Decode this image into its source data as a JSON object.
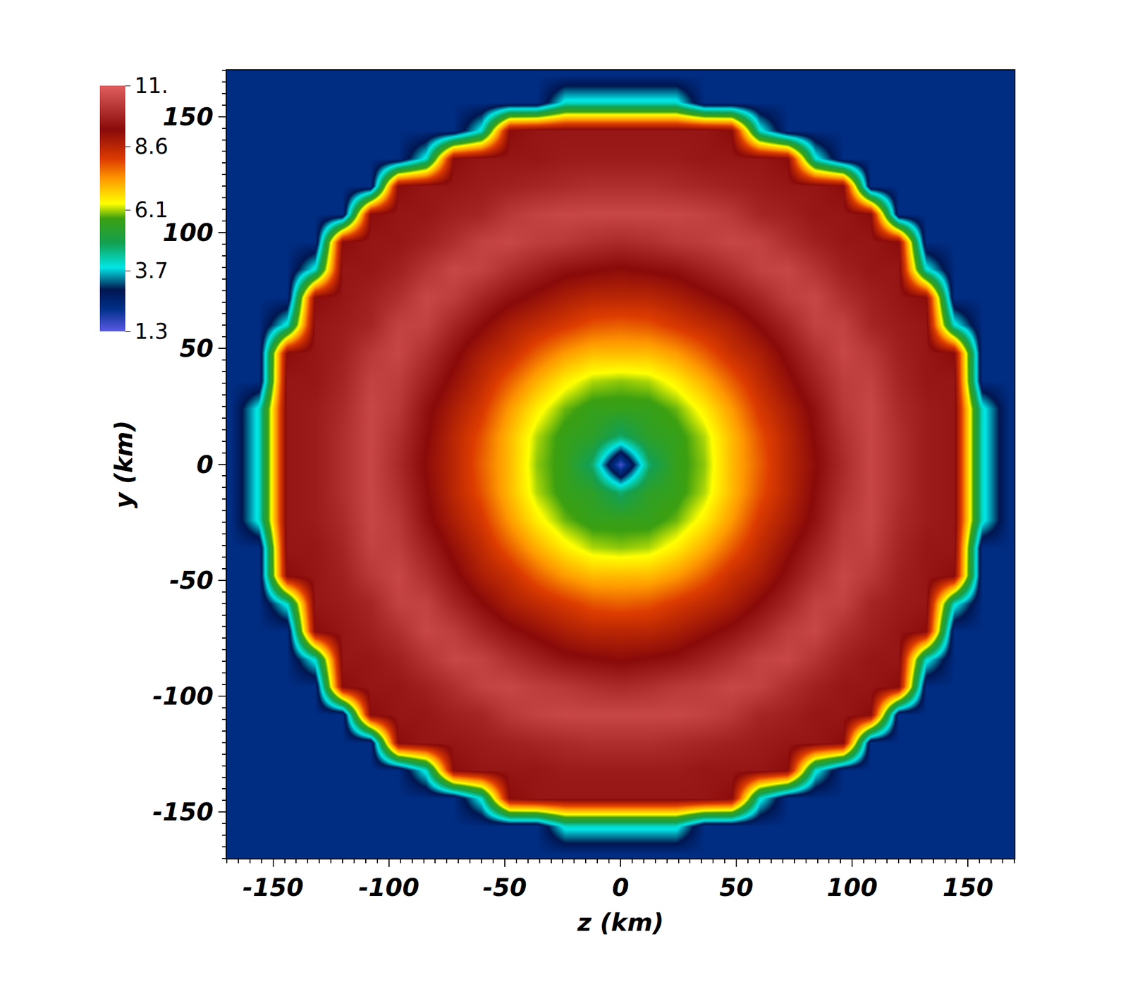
{
  "chart_data": {
    "type": "heatmap",
    "x_label": "z (km)",
    "y_label": "y (km)",
    "x": [
      -168,
      -156,
      -144,
      -132,
      -120,
      -108,
      -96,
      -84,
      -72,
      -60,
      -48,
      -36,
      -24,
      -12,
      0,
      12,
      24,
      36,
      48,
      60,
      72,
      84,
      96,
      108,
      120,
      132,
      144,
      156,
      168
    ],
    "y": [
      -168,
      -156,
      -144,
      -132,
      -120,
      -108,
      -96,
      -84,
      -72,
      -60,
      -48,
      -36,
      -24,
      -12,
      0,
      12,
      24,
      36,
      48,
      60,
      72,
      84,
      96,
      108,
      120,
      132,
      144,
      156,
      168
    ],
    "z": [
      [
        2.3,
        2.3,
        2.3,
        2.3,
        2.3,
        2.3,
        2.3,
        2.3,
        2.3,
        2.3,
        2.3,
        2.3,
        2.3,
        2.3,
        2.3,
        2.3,
        2.3,
        2.3,
        2.3,
        2.3,
        2.3,
        2.3,
        2.3,
        2.3,
        2.3,
        2.3,
        2.3,
        2.3,
        2.3
      ],
      [
        2.3,
        2.3,
        2.3,
        2.3,
        2.3,
        2.3,
        2.3,
        2.3,
        2.3,
        2.3,
        2.3,
        2.3,
        4.0,
        4.0,
        4.0,
        4.0,
        4.0,
        2.3,
        2.3,
        2.3,
        2.3,
        2.3,
        2.3,
        2.3,
        2.3,
        2.3,
        2.3,
        2.3,
        2.3
      ],
      [
        2.3,
        2.3,
        2.3,
        2.3,
        2.3,
        2.3,
        2.3,
        2.3,
        2.3,
        4.0,
        9.3,
        9.5,
        9.5,
        9.5,
        9.5,
        9.5,
        9.5,
        9.5,
        9.3,
        4.0,
        2.3,
        2.3,
        2.3,
        2.3,
        2.3,
        2.3,
        2.3,
        2.3,
        2.3
      ],
      [
        2.3,
        2.3,
        2.3,
        2.3,
        2.3,
        2.3,
        2.3,
        4.0,
        9.3,
        9.5,
        9.5,
        9.5,
        9.6,
        9.6,
        9.6,
        9.6,
        9.6,
        9.5,
        9.5,
        9.5,
        9.3,
        4.0,
        2.3,
        2.3,
        2.3,
        2.3,
        2.3,
        2.3,
        2.3
      ],
      [
        2.3,
        2.3,
        2.3,
        2.3,
        2.3,
        2.3,
        9.3,
        9.5,
        9.5,
        9.6,
        9.7,
        9.8,
        9.9,
        10.0,
        10.0,
        10.0,
        9.9,
        9.8,
        9.7,
        9.6,
        9.5,
        9.5,
        9.3,
        2.3,
        2.3,
        2.3,
        2.3,
        2.3,
        2.3
      ],
      [
        2.3,
        2.3,
        2.3,
        2.3,
        2.3,
        9.3,
        9.5,
        9.5,
        9.7,
        9.8,
        10.2,
        10.4,
        10.5,
        10.5,
        10.5,
        10.5,
        10.5,
        10.4,
        10.2,
        9.8,
        9.7,
        9.5,
        9.5,
        9.3,
        2.3,
        2.3,
        2.3,
        2.3,
        2.3
      ],
      [
        2.3,
        2.3,
        2.3,
        2.3,
        9.3,
        9.5,
        9.5,
        9.7,
        10.0,
        10.4,
        10.5,
        10.3,
        10.2,
        10.0,
        9.9,
        10.0,
        10.2,
        10.3,
        10.5,
        10.4,
        10.0,
        9.7,
        9.5,
        9.5,
        9.3,
        2.3,
        2.3,
        2.3,
        2.3
      ],
      [
        2.3,
        2.3,
        2.3,
        4.0,
        9.5,
        9.5,
        9.7,
        10.1,
        10.5,
        10.4,
        10.0,
        9.7,
        9.4,
        9.3,
        9.2,
        9.3,
        9.4,
        9.7,
        10.0,
        10.4,
        10.5,
        10.1,
        9.7,
        9.5,
        9.5,
        4.0,
        2.3,
        2.3,
        2.3
      ],
      [
        2.3,
        2.3,
        2.3,
        9.3,
        9.5,
        9.7,
        10.0,
        10.5,
        10.3,
        9.8,
        9.4,
        9.1,
        8.8,
        8.6,
        8.6,
        8.6,
        8.8,
        9.1,
        9.4,
        9.8,
        10.3,
        10.5,
        10.0,
        9.7,
        9.5,
        9.3,
        2.3,
        2.3,
        2.3
      ],
      [
        2.3,
        2.3,
        4.0,
        9.5,
        9.6,
        9.8,
        10.4,
        10.4,
        9.8,
        9.3,
        8.8,
        8.5,
        8.2,
        7.9,
        7.8,
        7.9,
        8.2,
        8.5,
        8.8,
        9.3,
        9.8,
        10.4,
        10.4,
        9.8,
        9.6,
        9.5,
        4.0,
        2.3,
        2.3
      ],
      [
        2.3,
        2.3,
        9.3,
        9.5,
        9.7,
        10.2,
        10.5,
        10.0,
        9.4,
        8.8,
        8.4,
        7.8,
        7.3,
        7.0,
        7.0,
        7.0,
        7.3,
        7.8,
        8.4,
        8.8,
        9.4,
        10.0,
        10.5,
        10.2,
        9.7,
        9.5,
        9.3,
        2.3,
        2.3
      ],
      [
        2.3,
        2.3,
        9.5,
        9.5,
        9.8,
        10.4,
        10.3,
        9.7,
        9.1,
        8.5,
        7.8,
        7.1,
        6.5,
        6.1,
        6.0,
        6.1,
        6.5,
        7.1,
        7.8,
        8.5,
        9.1,
        9.7,
        10.3,
        10.4,
        9.8,
        9.5,
        9.5,
        2.3,
        2.3
      ],
      [
        2.3,
        4.0,
        9.5,
        9.6,
        9.9,
        10.5,
        10.2,
        9.4,
        8.8,
        8.2,
        7.3,
        6.5,
        5.9,
        5.6,
        5.6,
        5.6,
        5.9,
        6.5,
        7.3,
        8.2,
        8.8,
        9.4,
        10.2,
        10.5,
        9.9,
        9.6,
        9.5,
        4.0,
        2.3
      ],
      [
        2.3,
        4.0,
        9.5,
        9.6,
        10.0,
        10.5,
        10.0,
        9.3,
        8.6,
        7.9,
        7.0,
        6.1,
        5.6,
        5.4,
        4.6,
        5.4,
        5.6,
        6.1,
        7.0,
        7.9,
        8.6,
        9.3,
        10.0,
        10.5,
        10.0,
        9.6,
        9.5,
        4.0,
        2.3
      ],
      [
        2.3,
        4.0,
        9.5,
        9.6,
        10.0,
        10.5,
        9.9,
        9.2,
        8.6,
        7.8,
        7.0,
        6.0,
        5.6,
        4.6,
        1.5,
        4.6,
        5.6,
        6.0,
        7.0,
        7.8,
        8.6,
        9.2,
        9.9,
        10.5,
        10.0,
        9.6,
        9.5,
        4.0,
        2.3
      ],
      [
        2.3,
        4.0,
        9.5,
        9.6,
        10.0,
        10.5,
        10.0,
        9.3,
        8.6,
        7.9,
        7.0,
        6.1,
        5.6,
        5.4,
        4.6,
        5.4,
        5.6,
        6.1,
        7.0,
        7.9,
        8.6,
        9.3,
        10.0,
        10.5,
        10.0,
        9.6,
        9.5,
        4.0,
        2.3
      ],
      [
        2.3,
        4.0,
        9.5,
        9.6,
        9.9,
        10.5,
        10.2,
        9.4,
        8.8,
        8.2,
        7.3,
        6.5,
        5.9,
        5.6,
        5.6,
        5.6,
        5.9,
        6.5,
        7.3,
        8.2,
        8.8,
        9.4,
        10.2,
        10.5,
        9.9,
        9.6,
        9.5,
        4.0,
        2.3
      ],
      [
        2.3,
        2.3,
        9.5,
        9.5,
        9.8,
        10.4,
        10.3,
        9.7,
        9.1,
        8.5,
        7.8,
        7.1,
        6.5,
        6.1,
        6.0,
        6.1,
        6.5,
        7.1,
        7.8,
        8.5,
        9.1,
        9.7,
        10.3,
        10.4,
        9.8,
        9.5,
        9.5,
        2.3,
        2.3
      ],
      [
        2.3,
        2.3,
        9.3,
        9.5,
        9.7,
        10.2,
        10.5,
        10.0,
        9.4,
        8.8,
        8.4,
        7.8,
        7.3,
        7.0,
        7.0,
        7.0,
        7.3,
        7.8,
        8.4,
        8.8,
        9.4,
        10.0,
        10.5,
        10.2,
        9.7,
        9.5,
        9.3,
        2.3,
        2.3
      ],
      [
        2.3,
        2.3,
        4.0,
        9.5,
        9.6,
        9.8,
        10.4,
        10.4,
        9.8,
        9.3,
        8.8,
        8.5,
        8.2,
        7.9,
        7.8,
        7.9,
        8.2,
        8.5,
        8.8,
        9.3,
        9.8,
        10.4,
        10.4,
        9.8,
        9.6,
        9.5,
        4.0,
        2.3,
        2.3
      ],
      [
        2.3,
        2.3,
        2.3,
        9.3,
        9.5,
        9.7,
        10.0,
        10.5,
        10.3,
        9.8,
        9.4,
        9.1,
        8.8,
        8.6,
        8.6,
        8.6,
        8.8,
        9.1,
        9.4,
        9.8,
        10.3,
        10.5,
        10.0,
        9.7,
        9.5,
        9.3,
        2.3,
        2.3,
        2.3
      ],
      [
        2.3,
        2.3,
        2.3,
        4.0,
        9.5,
        9.5,
        9.7,
        10.1,
        10.5,
        10.4,
        10.0,
        9.7,
        9.4,
        9.3,
        9.2,
        9.3,
        9.4,
        9.7,
        10.0,
        10.4,
        10.5,
        10.1,
        9.7,
        9.5,
        9.5,
        4.0,
        2.3,
        2.3,
        2.3
      ],
      [
        2.3,
        2.3,
        2.3,
        2.3,
        9.3,
        9.5,
        9.5,
        9.7,
        10.0,
        10.4,
        10.5,
        10.3,
        10.2,
        10.0,
        9.9,
        10.0,
        10.2,
        10.3,
        10.5,
        10.4,
        10.0,
        9.7,
        9.5,
        9.5,
        9.3,
        2.3,
        2.3,
        2.3,
        2.3
      ],
      [
        2.3,
        2.3,
        2.3,
        2.3,
        2.3,
        9.3,
        9.5,
        9.5,
        9.7,
        9.8,
        10.2,
        10.4,
        10.5,
        10.5,
        10.5,
        10.5,
        10.5,
        10.4,
        10.2,
        9.8,
        9.7,
        9.5,
        9.5,
        9.3,
        2.3,
        2.3,
        2.3,
        2.3,
        2.3
      ],
      [
        2.3,
        2.3,
        2.3,
        2.3,
        2.3,
        2.3,
        9.3,
        9.5,
        9.5,
        9.6,
        9.7,
        9.8,
        9.9,
        10.0,
        10.0,
        10.0,
        9.9,
        9.8,
        9.7,
        9.6,
        9.5,
        9.5,
        9.3,
        2.3,
        2.3,
        2.3,
        2.3,
        2.3,
        2.3
      ],
      [
        2.3,
        2.3,
        2.3,
        2.3,
        2.3,
        2.3,
        2.3,
        4.0,
        9.3,
        9.5,
        9.5,
        9.5,
        9.6,
        9.6,
        9.6,
        9.6,
        9.6,
        9.5,
        9.5,
        9.5,
        9.3,
        4.0,
        2.3,
        2.3,
        2.3,
        2.3,
        2.3,
        2.3,
        2.3
      ],
      [
        2.3,
        2.3,
        2.3,
        2.3,
        2.3,
        2.3,
        2.3,
        2.3,
        2.3,
        4.0,
        9.3,
        9.5,
        9.5,
        9.5,
        9.5,
        9.5,
        9.5,
        9.5,
        9.3,
        4.0,
        2.3,
        2.3,
        2.3,
        2.3,
        2.3,
        2.3,
        2.3,
        2.3,
        2.3
      ],
      [
        2.3,
        2.3,
        2.3,
        2.3,
        2.3,
        2.3,
        2.3,
        2.3,
        2.3,
        2.3,
        2.3,
        2.3,
        4.0,
        4.0,
        4.0,
        4.0,
        4.0,
        2.3,
        2.3,
        2.3,
        2.3,
        2.3,
        2.3,
        2.3,
        2.3,
        2.3,
        2.3,
        2.3,
        2.3
      ],
      [
        2.3,
        2.3,
        2.3,
        2.3,
        2.3,
        2.3,
        2.3,
        2.3,
        2.3,
        2.3,
        2.3,
        2.3,
        2.3,
        2.3,
        2.3,
        2.3,
        2.3,
        2.3,
        2.3,
        2.3,
        2.3,
        2.3,
        2.3,
        2.3,
        2.3,
        2.3,
        2.3,
        2.3,
        2.3
      ]
    ],
    "xlim": [
      -170,
      170
    ],
    "ylim": [
      -170,
      170
    ],
    "xticks": [
      -150,
      -100,
      -50,
      0,
      50,
      100,
      150
    ],
    "yticks": [
      -150,
      -100,
      -50,
      0,
      50,
      100,
      150
    ],
    "zlim": [
      1.3,
      11
    ],
    "zticks": [
      1.3,
      3.7,
      6.1,
      8.6,
      {
        "value": 11,
        "label": "11."
      }
    ]
  }
}
